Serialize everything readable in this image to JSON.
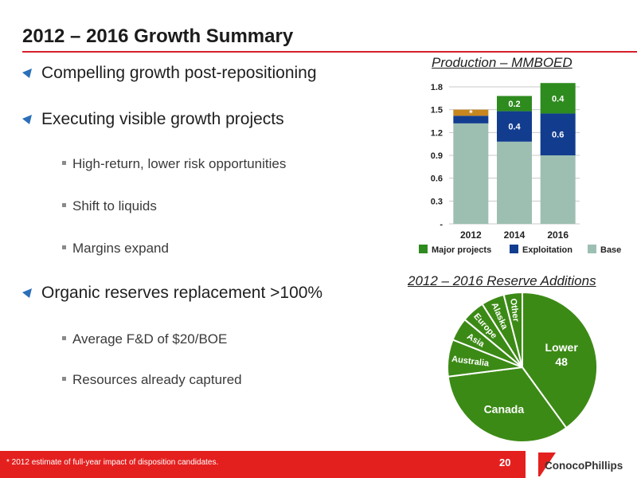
{
  "title": "2012 – 2016 Growth Summary",
  "bullets": [
    {
      "level": 1,
      "text": "Compelling growth post-repositioning"
    },
    {
      "level": 1,
      "text": "Executing visible growth projects"
    },
    {
      "level": 2,
      "text": "High-return, lower risk opportunities"
    },
    {
      "level": 2,
      "text": "Shift to liquids"
    },
    {
      "level": 2,
      "text": "Margins expand"
    },
    {
      "level": 1,
      "text": "Organic reserves replacement >100%"
    },
    {
      "level": 2,
      "text": "Average F&D of $20/BOE"
    },
    {
      "level": 2,
      "text": "Resources already captured"
    }
  ],
  "colors": {
    "accent": "#e4201f",
    "major": "#2e8b1e",
    "exploitation": "#123d8f",
    "base": "#9dbfb2",
    "asterisk": "#c8861f",
    "pie": "#3c8a16"
  },
  "footer": {
    "footnote": "* 2012 estimate of full-year impact of disposition candidates.",
    "page_number": "20",
    "logo_text": "ConocoPhillips"
  },
  "chart_data": [
    {
      "type": "bar",
      "stacked": true,
      "title": "Production – MMBOED",
      "categories": [
        "2012",
        "2014",
        "2016"
      ],
      "yticks": [
        "-",
        "0.3",
        "0.6",
        "0.9",
        "1.2",
        "1.5",
        "1.8"
      ],
      "ylim": [
        0,
        1.8
      ],
      "grid": true,
      "legend_position": "bottom",
      "series": [
        {
          "name": "Base",
          "values": [
            1.32,
            1.08,
            0.9
          ],
          "labels": [
            "",
            "",
            ""
          ]
        },
        {
          "name": "Exploitation",
          "values": [
            0.1,
            0.4,
            0.55
          ],
          "labels": [
            "",
            "0.4",
            "0.6"
          ]
        },
        {
          "name": "Major projects",
          "values": [
            0.0,
            0.2,
            0.4
          ],
          "labels": [
            "",
            "0.2",
            "0.4"
          ]
        },
        {
          "name": "",
          "values": [
            0.08,
            0,
            0
          ],
          "labels": [
            "*",
            "",
            ""
          ]
        }
      ],
      "legend": [
        "Major projects",
        "Exploitation",
        "Base"
      ]
    },
    {
      "type": "pie",
      "title": "2012 – 2016 Reserve Additions",
      "slices": [
        {
          "label": "Lower 48",
          "value": 40
        },
        {
          "label": "Canada",
          "value": 33
        },
        {
          "label": "Australia",
          "value": 8
        },
        {
          "label": "Asia",
          "value": 5
        },
        {
          "label": "Europe",
          "value": 5
        },
        {
          "label": "Alaska",
          "value": 5
        },
        {
          "label": "Other",
          "value": 4
        }
      ]
    }
  ]
}
